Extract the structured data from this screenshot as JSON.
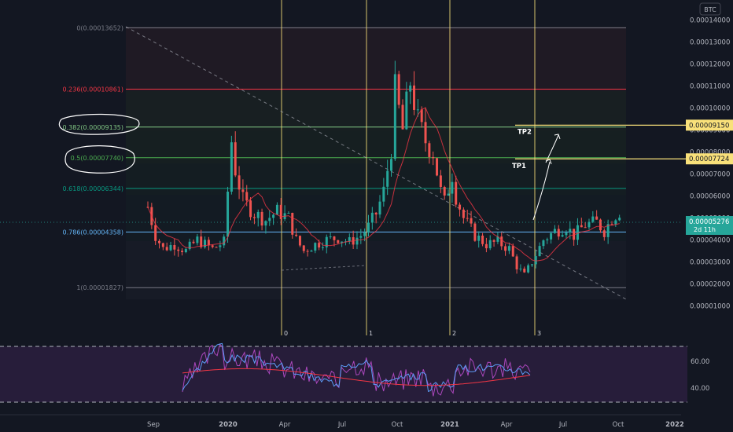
{
  "chart_data": {
    "type": "candlestick",
    "currency_label": "BTC",
    "x_ticks": [
      "Sep",
      "2020",
      "Apr",
      "Jul",
      "Oct",
      "2021",
      "Apr",
      "Jul",
      "Oct",
      "2022"
    ],
    "y_ticks": [
      "0.00014000",
      "0.00013000",
      "0.00012000",
      "0.00011000",
      "0.00010000",
      "0.00009000",
      "0.00008000",
      "0.00007000",
      "0.00006000",
      "0.00005000",
      "0.00004000",
      "0.00003000",
      "0.00002000",
      "0.00001000"
    ],
    "ylim": [
      3.7e-06,
      0.0001413
    ],
    "fib_levels": [
      {
        "label": "0(0.00013652)",
        "value": 0.00013652,
        "color": "#787b86"
      },
      {
        "label": "0.236(0.00010861)",
        "value": 0.00010861,
        "color": "#f23645"
      },
      {
        "label": "0.382(0.00009135)",
        "value": 9.135e-05,
        "color": "#81c784"
      },
      {
        "label": "0.5(0.00007740)",
        "value": 7.74e-05,
        "color": "#4caf50"
      },
      {
        "label": "0.618(0.00006344)",
        "value": 6.344e-05,
        "color": "#089981"
      },
      {
        "label": "0.786(0.00004358)",
        "value": 4.358e-05,
        "color": "#64b5f6"
      },
      {
        "label": "1(0.00001827)",
        "value": 1.827e-05,
        "color": "#787b86"
      }
    ],
    "targets": [
      {
        "name": "TP2",
        "value": 9.15e-05,
        "label": "0.00009150"
      },
      {
        "name": "TP1",
        "value": 7.724e-05,
        "label": "0.00007724"
      }
    ],
    "current_price": {
      "label": "0.00005276",
      "value": 5.276e-05,
      "countdown": "2d 11h"
    },
    "cycle_markers": [
      "0",
      "1",
      "2",
      "3"
    ],
    "price_path": [
      [
        0,
        5.5e-05
      ],
      [
        2,
        4.2e-05
      ],
      [
        4,
        3.6e-05
      ],
      [
        7,
        3.8e-05
      ],
      [
        10,
        3.5e-05
      ],
      [
        13,
        4e-05
      ],
      [
        15,
        3.8e-05
      ],
      [
        17,
        3.6e-05
      ],
      [
        20,
        3.9e-05
      ],
      [
        22,
        8.5e-05
      ],
      [
        23,
        7.2e-05
      ],
      [
        25,
        5.8e-05
      ],
      [
        28,
        5.2e-05
      ],
      [
        31,
        4.9e-05
      ],
      [
        34,
        5.3e-05
      ],
      [
        37,
        5e-05
      ],
      [
        39,
        4e-05
      ],
      [
        41,
        3.5e-05
      ],
      [
        44,
        3.8e-05
      ],
      [
        47,
        4e-05
      ],
      [
        50,
        4.1e-05
      ],
      [
        53,
        3.9e-05
      ],
      [
        56,
        4.2e-05
      ],
      [
        58,
        4.6e-05
      ],
      [
        60,
        5.2e-05
      ],
      [
        62,
        6.2e-05
      ],
      [
        64,
        8.2e-05
      ],
      [
        65,
        0.000108
      ],
      [
        67,
        9e-05
      ],
      [
        69,
        0.000112
      ],
      [
        71,
        9.4e-05
      ],
      [
        73,
        8.5e-05
      ],
      [
        75,
        8e-05
      ],
      [
        77,
        6.2e-05
      ],
      [
        78,
        5.7e-05
      ],
      [
        80,
        7e-05
      ],
      [
        81,
        6e-05
      ],
      [
        83,
        5e-05
      ],
      [
        86,
        4.2e-05
      ],
      [
        89,
        3.8e-05
      ],
      [
        92,
        3.9e-05
      ],
      [
        95,
        3.6e-05
      ],
      [
        97,
        2.8e-05
      ],
      [
        99,
        2.4e-05
      ],
      [
        101,
        3e-05
      ],
      [
        104,
        4e-05
      ],
      [
        107,
        4.4e-05
      ],
      [
        110,
        4.6e-05
      ],
      [
        112,
        4.2e-05
      ],
      [
        115,
        4.7e-05
      ],
      [
        118,
        4.8e-05
      ],
      [
        120,
        4.4e-05
      ],
      [
        122,
        5e-05
      ],
      [
        124,
        5.3e-05
      ]
    ],
    "rsi_levels": [
      "60.00",
      "40.00"
    ]
  },
  "annotations": {
    "cycle_top_marker_label": "1"
  }
}
